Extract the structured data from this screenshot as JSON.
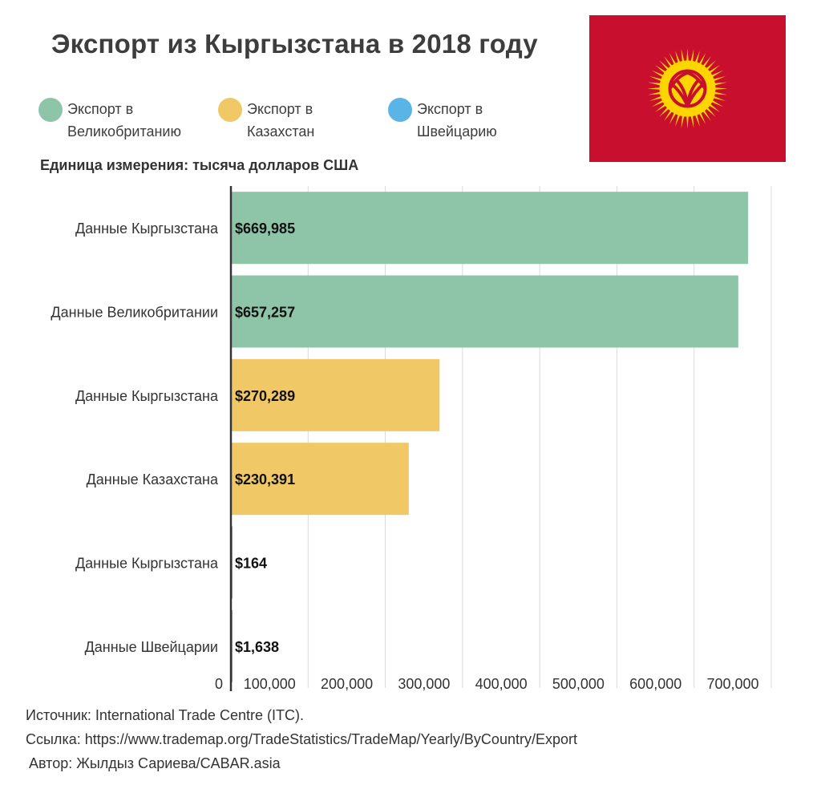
{
  "title": "Экспорт из Кыргызстана в 2018 году",
  "legend": [
    {
      "label": "Экспорт в\nВеликобританию",
      "color": "#8ec4a7"
    },
    {
      "label": "Экспорт в\nКазахстан",
      "color": "#f0c866"
    },
    {
      "label": "Экспорт в\nШвейцарию",
      "color": "#5ab4e6"
    }
  ],
  "unit_label": "Единица измерения: тысяча долларов США",
  "flag": {
    "field_color": "#c8102e",
    "sun_color": "#ffd500"
  },
  "chart_data": {
    "type": "bar",
    "orientation": "horizontal",
    "categories": [
      "Данные Кыргызстана",
      "Данные Великобритании",
      "Данные Кыргызстана",
      "Данные Казахстана",
      "Данные Кыргызстана",
      "Данные Швейцарии"
    ],
    "values": [
      669985,
      657257,
      270289,
      230391,
      164,
      1638
    ],
    "value_labels": [
      "$669,985",
      "$657,257",
      "$270,289",
      "$230,391",
      "$164",
      "$1,638"
    ],
    "colors": [
      "#8ec4a7",
      "#8ec4a7",
      "#f0c866",
      "#f0c866",
      "#5ab4e6",
      "#5ab4e6"
    ],
    "x_ticks": [
      0,
      100000,
      200000,
      300000,
      400000,
      500000,
      600000,
      700000
    ],
    "x_tick_labels": [
      "0",
      "100,000",
      "200,000",
      "300,000",
      "400,000",
      "500,000",
      "600,000",
      "700,000"
    ],
    "xlim": [
      0,
      700000
    ],
    "grid": true
  },
  "footer": {
    "source": "Источник: International Trade Centre (ITC).",
    "link": "Ссылка: https://www.trademap.org/TradeStatistics/TradeMap/Yearly/ByCountry/Export",
    "author": "Автор: Жылдыз Сариева/CABAR.asia"
  }
}
